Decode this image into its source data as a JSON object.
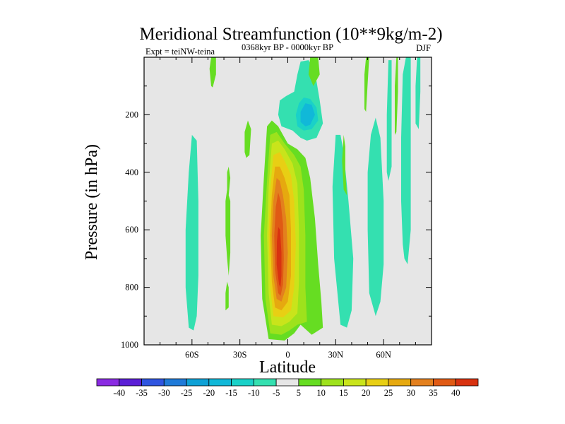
{
  "chart_data": {
    "type": "heatmap",
    "title": "Meridional Streamfunction (10**9kg/m-2)",
    "subtitle_left": "Expt = teiNW-teina",
    "subtitle_center": "0368kyr BP - 0000kyr BP",
    "subtitle_right": "DJF",
    "xlabel": "Latitude",
    "ylabel": "Pressure (in hPa)",
    "xlim": [
      -90,
      90
    ],
    "ylim": [
      1000,
      0
    ],
    "x_ticks": [
      {
        "value": -60,
        "label": "60S"
      },
      {
        "value": -30,
        "label": "30S"
      },
      {
        "value": 0,
        "label": "0"
      },
      {
        "value": 30,
        "label": "30N"
      },
      {
        "value": 60,
        "label": "60N"
      }
    ],
    "y_ticks": [
      {
        "value": 200,
        "label": "200"
      },
      {
        "value": 400,
        "label": "400"
      },
      {
        "value": 600,
        "label": "600"
      },
      {
        "value": 800,
        "label": "800"
      },
      {
        "value": 1000,
        "label": "1000"
      }
    ],
    "colorbar": {
      "levels": [
        "-40",
        "-35",
        "-30",
        "-25",
        "-20",
        "-15",
        "-10",
        "-5",
        "5",
        "10",
        "15",
        "20",
        "25",
        "30",
        "35",
        "40"
      ],
      "colors": [
        "#8a2be2",
        "#5b1fd6",
        "#2f55e0",
        "#1f7ad8",
        "#0ea1d6",
        "#11b8d8",
        "#1ad1c8",
        "#34e0b0",
        "#e6e6e6",
        "#66dd22",
        "#9ee21c",
        "#c9e41b",
        "#e8cf14",
        "#e6a90f",
        "#e3801e",
        "#e05a14",
        "#d83210"
      ]
    },
    "regions": [
      {
        "name": "contour-positive-5",
        "level": "5",
        "fill": "#66dd22",
        "points": [
          [
            -12,
            980
          ],
          [
            -16,
            840
          ],
          [
            -17,
            620
          ],
          [
            -15,
            420
          ],
          [
            -13,
            240
          ],
          [
            -10,
            220
          ],
          [
            -6,
            240
          ],
          [
            0,
            300
          ],
          [
            6,
            320
          ],
          [
            11,
            350
          ],
          [
            14,
            420
          ],
          [
            17,
            560
          ],
          [
            19,
            720
          ],
          [
            21,
            850
          ],
          [
            22,
            940
          ],
          [
            15,
            965
          ],
          [
            8,
            930
          ],
          [
            4,
            960
          ],
          [
            -2,
            985
          ]
        ]
      },
      {
        "name": "contour-positive-10",
        "level": "10",
        "fill": "#9ee21c",
        "points": [
          [
            -11,
            960
          ],
          [
            -14,
            840
          ],
          [
            -15,
            620
          ],
          [
            -13,
            430
          ],
          [
            -11,
            270
          ],
          [
            -7,
            260
          ],
          [
            -2,
            300
          ],
          [
            4,
            340
          ],
          [
            8,
            380
          ],
          [
            10,
            460
          ],
          [
            11,
            620
          ],
          [
            11,
            800
          ],
          [
            12,
            920
          ],
          [
            6,
            930
          ],
          [
            1,
            950
          ],
          [
            -4,
            965
          ]
        ]
      },
      {
        "name": "contour-positive-15",
        "level": "15",
        "fill": "#c9e41b",
        "points": [
          [
            -10,
            930
          ],
          [
            -12,
            820
          ],
          [
            -13,
            620
          ],
          [
            -12,
            450
          ],
          [
            -10,
            300
          ],
          [
            -6,
            290
          ],
          [
            -2,
            320
          ],
          [
            3,
            370
          ],
          [
            6,
            440
          ],
          [
            7,
            600
          ],
          [
            7,
            780
          ],
          [
            6,
            890
          ],
          [
            1,
            920
          ],
          [
            -4,
            935
          ]
        ]
      },
      {
        "name": "contour-positive-20",
        "level": "20",
        "fill": "#e8cf14",
        "points": [
          [
            -9,
            900
          ],
          [
            -11,
            800
          ],
          [
            -12,
            620
          ],
          [
            -11,
            460
          ],
          [
            -9,
            340
          ],
          [
            -5,
            330
          ],
          [
            -2,
            360
          ],
          [
            2,
            410
          ],
          [
            4,
            500
          ],
          [
            5,
            650
          ],
          [
            4,
            800
          ],
          [
            2,
            880
          ],
          [
            -3,
            905
          ]
        ]
      },
      {
        "name": "contour-positive-25",
        "level": "25",
        "fill": "#e6a90f",
        "points": [
          [
            -8,
            870
          ],
          [
            -10,
            780
          ],
          [
            -11,
            620
          ],
          [
            -10,
            480
          ],
          [
            -8,
            380
          ],
          [
            -5,
            380
          ],
          [
            -2,
            420
          ],
          [
            1,
            480
          ],
          [
            2,
            600
          ],
          [
            2,
            760
          ],
          [
            0,
            850
          ],
          [
            -4,
            880
          ]
        ]
      },
      {
        "name": "contour-positive-30",
        "level": "30",
        "fill": "#e3801e",
        "points": [
          [
            -7,
            840
          ],
          [
            -9,
            760
          ],
          [
            -10,
            620
          ],
          [
            -9,
            500
          ],
          [
            -7,
            420
          ],
          [
            -5,
            430
          ],
          [
            -3,
            480
          ],
          [
            -1,
            560
          ],
          [
            0,
            680
          ],
          [
            -1,
            800
          ],
          [
            -4,
            850
          ]
        ]
      },
      {
        "name": "contour-positive-35",
        "level": "35",
        "fill": "#e05a14",
        "points": [
          [
            -6,
            820
          ],
          [
            -8,
            740
          ],
          [
            -8.5,
            620
          ],
          [
            -7.5,
            520
          ],
          [
            -6,
            470
          ],
          [
            -4.5,
            500
          ],
          [
            -3,
            580
          ],
          [
            -2.5,
            700
          ],
          [
            -3,
            790
          ],
          [
            -4.5,
            830
          ]
        ]
      },
      {
        "name": "contour-positive-40",
        "level": "40",
        "fill": "#d83210",
        "points": [
          [
            -5.5,
            790
          ],
          [
            -7,
            720
          ],
          [
            -6.8,
            640
          ],
          [
            -6,
            590
          ],
          [
            -4.8,
            600
          ],
          [
            -4,
            680
          ],
          [
            -4,
            760
          ],
          [
            -4.6,
            800
          ]
        ]
      },
      {
        "name": "contour-negative-5-upper",
        "level": "-5",
        "fill": "#34e0b0",
        "points": [
          [
            -4,
            240
          ],
          [
            -6,
            200
          ],
          [
            -5,
            150
          ],
          [
            -1,
            135
          ],
          [
            4,
            120
          ],
          [
            6,
            60
          ],
          [
            8,
            15
          ],
          [
            13,
            10
          ],
          [
            17,
            50
          ],
          [
            20,
            150
          ],
          [
            22,
            230
          ],
          [
            18,
            280
          ],
          [
            12,
            290
          ],
          [
            8,
            280
          ],
          [
            3,
            255
          ]
        ]
      },
      {
        "name": "contour-negative-10-upper",
        "level": "-10",
        "fill": "#1ad1c8",
        "points": [
          [
            6,
            240
          ],
          [
            5,
            200
          ],
          [
            7,
            160
          ],
          [
            10,
            140
          ],
          [
            14,
            145
          ],
          [
            18,
            175
          ],
          [
            19,
            220
          ],
          [
            15,
            250
          ],
          [
            10,
            255
          ]
        ]
      },
      {
        "name": "contour-negative-15-upper",
        "level": "-15",
        "fill": "#11b8d8",
        "points": [
          [
            8,
            225
          ],
          [
            8,
            190
          ],
          [
            11,
            160
          ],
          [
            15,
            165
          ],
          [
            17,
            200
          ],
          [
            14,
            235
          ],
          [
            11,
            240
          ]
        ]
      },
      {
        "name": "contour-negative-5-sh",
        "level": "-5",
        "fill": "#34e0b0",
        "points": [
          [
            -62,
            940
          ],
          [
            -64,
            800
          ],
          [
            -64,
            600
          ],
          [
            -62,
            400
          ],
          [
            -60,
            270
          ],
          [
            -57,
            290
          ],
          [
            -56,
            500
          ],
          [
            -56,
            760
          ],
          [
            -57,
            900
          ],
          [
            -59,
            950
          ]
        ]
      },
      {
        "name": "contour-negative-5-nh1",
        "level": "-5",
        "fill": "#34e0b0",
        "points": [
          [
            30,
            270
          ],
          [
            28,
            450
          ],
          [
            29,
            700
          ],
          [
            33,
            930
          ],
          [
            37,
            940
          ],
          [
            40,
            880
          ],
          [
            41,
            700
          ],
          [
            38,
            500
          ],
          [
            35,
            330
          ],
          [
            33,
            270
          ]
        ]
      },
      {
        "name": "contour-negative-5-nh2",
        "level": "-5",
        "fill": "#34e0b0",
        "points": [
          [
            51,
            820
          ],
          [
            50,
            600
          ],
          [
            50,
            400
          ],
          [
            52,
            270
          ],
          [
            55,
            210
          ],
          [
            58,
            280
          ],
          [
            60,
            500
          ],
          [
            60,
            720
          ],
          [
            58,
            850
          ],
          [
            55,
            900
          ]
        ]
      },
      {
        "name": "contour-negative-5-nh3",
        "level": "-5",
        "fill": "#34e0b0",
        "points": [
          [
            72,
            650
          ],
          [
            71,
            500
          ],
          [
            71,
            280
          ],
          [
            72,
            60
          ],
          [
            74,
            0
          ],
          [
            77,
            0
          ],
          [
            77,
            300
          ],
          [
            77,
            600
          ],
          [
            75,
            720
          ],
          [
            73,
            700
          ]
        ]
      },
      {
        "name": "contour-negative-5-strip1",
        "level": "-5",
        "fill": "#34e0b0",
        "points": [
          [
            62,
            400
          ],
          [
            62,
            200
          ],
          [
            63,
            10
          ],
          [
            65,
            10
          ],
          [
            65,
            200
          ],
          [
            65,
            380
          ],
          [
            63,
            430
          ]
        ]
      },
      {
        "name": "contour-negative-5-strip2",
        "level": "-5",
        "fill": "#34e0b0",
        "points": [
          [
            80,
            230
          ],
          [
            80,
            100
          ],
          [
            81,
            0
          ],
          [
            83,
            0
          ],
          [
            83,
            120
          ],
          [
            82,
            250
          ]
        ]
      },
      {
        "name": "contour-positive-5-nh4",
        "level": "5",
        "fill": "#66dd22",
        "points": [
          [
            48,
            180
          ],
          [
            48,
            60
          ],
          [
            49,
            0
          ],
          [
            51,
            0
          ],
          [
            50,
            90
          ],
          [
            49,
            190
          ]
        ]
      },
      {
        "name": "contour-positive-5-nh5",
        "level": "5",
        "fill": "#66dd22",
        "points": [
          [
            67,
            270
          ],
          [
            67,
            100
          ],
          [
            68,
            0
          ],
          [
            69,
            0
          ],
          [
            69,
            120
          ],
          [
            68,
            260
          ]
        ]
      },
      {
        "name": "contour-positive-5-nh6",
        "level": "5",
        "fill": "#66dd22",
        "points": [
          [
            35,
            270
          ],
          [
            36,
            310
          ],
          [
            36,
            400
          ],
          [
            37,
            480
          ],
          [
            35,
            460
          ],
          [
            34,
            360
          ]
        ]
      },
      {
        "name": "contour-positive-5-midsh1",
        "level": "5",
        "fill": "#66dd22",
        "points": [
          [
            -27,
            330
          ],
          [
            -27,
            260
          ],
          [
            -25,
            220
          ],
          [
            -23,
            250
          ],
          [
            -24,
            340
          ],
          [
            -26,
            350
          ]
        ]
      },
      {
        "name": "contour-positive-5-midsh2",
        "level": "5",
        "fill": "#66dd22",
        "points": [
          [
            -39,
            880
          ],
          [
            -39,
            820
          ],
          [
            -38,
            780
          ],
          [
            -37,
            800
          ],
          [
            -37,
            870
          ]
        ]
      },
      {
        "name": "contour-positive-5-midsh3",
        "level": "5",
        "fill": "#66dd22",
        "points": [
          [
            -38,
            470
          ],
          [
            -38,
            400
          ],
          [
            -37,
            380
          ],
          [
            -36,
            420
          ],
          [
            -37,
            480
          ]
        ]
      },
      {
        "name": "contour-positive-5-midsh4",
        "level": "5",
        "fill": "#66dd22",
        "points": [
          [
            -39,
            620
          ],
          [
            -39,
            500
          ],
          [
            -38,
            460
          ],
          [
            -36,
            500
          ],
          [
            -36,
            680
          ],
          [
            -37,
            760
          ],
          [
            -38,
            700
          ]
        ]
      },
      {
        "name": "contour-positive-5-top",
        "level": "5",
        "fill": "#66dd22",
        "points": [
          [
            -48,
            100
          ],
          [
            -49,
            40
          ],
          [
            -48,
            0
          ],
          [
            -45,
            0
          ],
          [
            -45,
            60
          ],
          [
            -47,
            105
          ]
        ]
      },
      {
        "name": "contour-positive-5-nh7",
        "level": "5",
        "fill": "#66dd22",
        "points": [
          [
            14,
            0
          ],
          [
            19,
            0
          ],
          [
            20,
            60
          ],
          [
            16,
            100
          ],
          [
            13,
            60
          ]
        ]
      }
    ]
  }
}
